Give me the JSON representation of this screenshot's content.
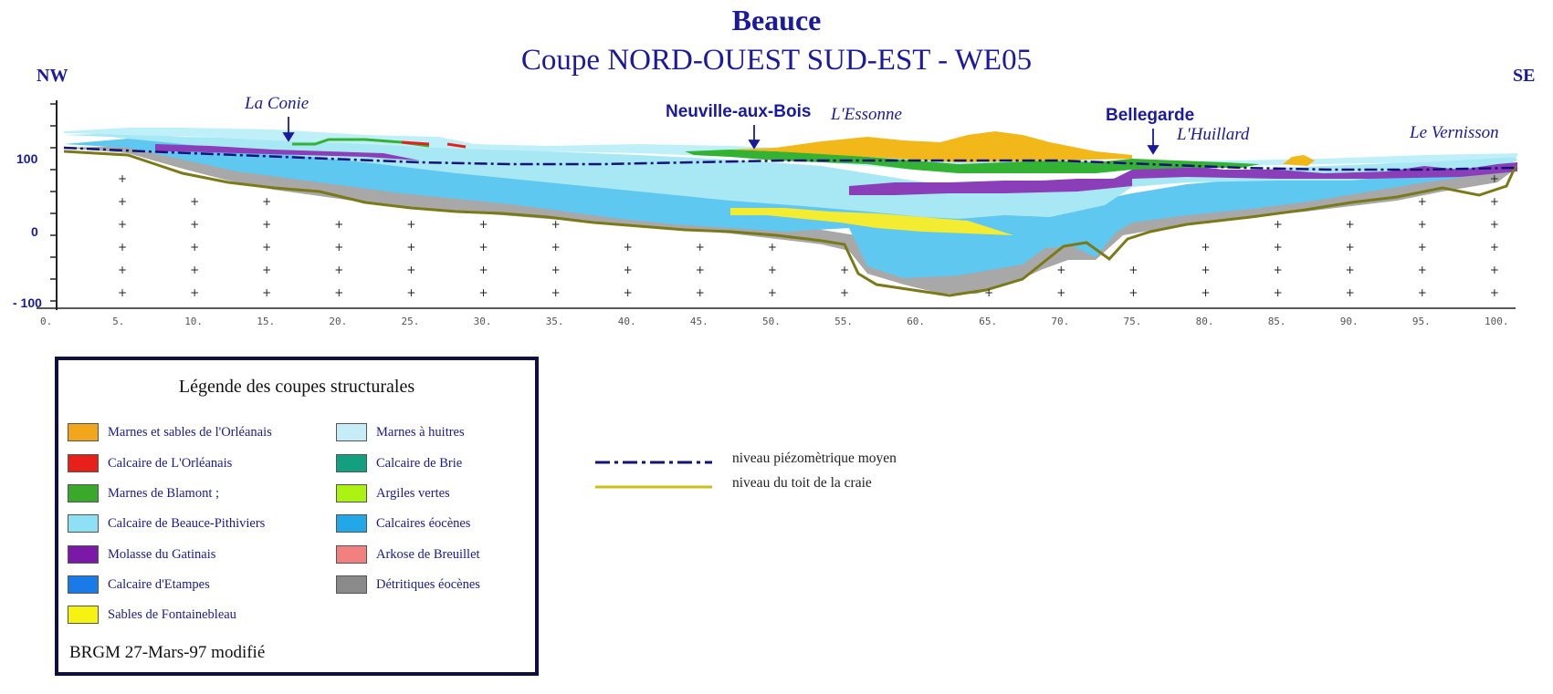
{
  "header": {
    "title": "Beauce",
    "subtitle": "Coupe NORD-OUEST  SUD-EST - WE05"
  },
  "section": {
    "left_dir": "NW",
    "right_dir": "SE",
    "y_ticks": [
      "100",
      "0",
      "- 100"
    ],
    "x_ticks": [
      "0.",
      "5.",
      "10.",
      "15.",
      "20.",
      "25.",
      "30.",
      "35.",
      "40.",
      "45.",
      "50.",
      "55.",
      "60.",
      "65.",
      "70.",
      "75.",
      "80.",
      "85.",
      "90.",
      "95.",
      "100."
    ],
    "places": [
      {
        "name": "La Conie",
        "style": "river"
      },
      {
        "name": "Neuville-aux-Bois",
        "style": "town"
      },
      {
        "name": "L'Essonne",
        "style": "river"
      },
      {
        "name": "Bellegarde",
        "style": "town"
      },
      {
        "name": "L'Huillard",
        "style": "river"
      },
      {
        "name": "Le Vernisson",
        "style": "river"
      }
    ],
    "colors": {
      "orleanais_sands": "#f2b719",
      "orleanais_limestone": "#e8201a",
      "blamont": "#33b233",
      "beauce_pithiviers": "#a8e8f4",
      "gatinais": "#8a3fb8",
      "eocene_limestone": "#5ec8f0",
      "fontainebleau": "#f4ec30",
      "detrital": "#a8a8a8",
      "chalk_line": "#7a7a18",
      "piezo_line": "#12127a"
    }
  },
  "legend": {
    "title": "Légende des coupes structurales",
    "left": [
      {
        "label": "Marnes et sables de l'Orléanais",
        "color": "#f2a61c"
      },
      {
        "label": "Calcaire de L'Orléanais",
        "color": "#e8201a"
      },
      {
        "label": "Marnes de Blamont  ;",
        "color": "#3aa82a"
      },
      {
        "label": "Calcaire de Beauce-Pithiviers",
        "color": "#8ee0f4"
      },
      {
        "label": "Molasse du Gatinais",
        "color": "#7a18a8"
      },
      {
        "label": "Calcaire d'Etampes",
        "color": "#1a7ae8"
      },
      {
        "label": "Sables de Fontainebleau",
        "color": "#f6f212"
      }
    ],
    "right": [
      {
        "label": "Marnes à huitres",
        "color": "#c6ecf8"
      },
      {
        "label": "Calcaire de Brie",
        "color": "#12a080"
      },
      {
        "label": "Argiles vertes",
        "color": "#aaf212"
      },
      {
        "label": "Calcaires éocènes",
        "color": "#22a8e8"
      },
      {
        "label": "Arkose de Breuillet",
        "color": "#f28080"
      },
      {
        "label": "Détritiques éocènes",
        "color": "#8a8a8a"
      }
    ],
    "footer": "BRGM 27-Mars-97 modifié"
  },
  "lines_legend": [
    {
      "label": "niveau piézomètrique moyen",
      "color": "#12127a",
      "style": "dash-dot"
    },
    {
      "label": "niveau du toit de la craie",
      "color": "#c8c018",
      "style": "solid"
    }
  ]
}
